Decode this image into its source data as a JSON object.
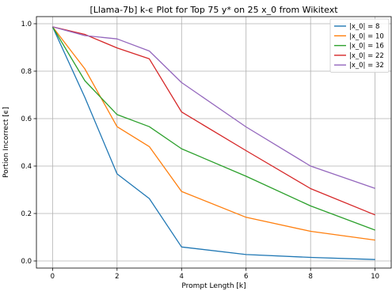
{
  "chart_data": {
    "type": "line",
    "title": "[Llama-7b] k-ϵ Plot for Top 75 y* on 25 x_0 from Wikitext",
    "xlabel": "Prompt Length [k]",
    "ylabel": "Portion Incorrect [ϵ]",
    "xlim": [
      -0.5,
      10.5
    ],
    "ylim": [
      -0.03,
      1.03
    ],
    "x_ticks": [
      0,
      2,
      4,
      6,
      8,
      10
    ],
    "x_tick_labels": [
      "0",
      "2",
      "4",
      "6",
      "8",
      "10"
    ],
    "y_ticks": [
      0.0,
      0.2,
      0.4,
      0.6,
      0.8,
      1.0
    ],
    "y_tick_labels": [
      "0.0",
      "0.2",
      "0.4",
      "0.6",
      "0.8",
      "1.0"
    ],
    "grid": true,
    "legend_position": "top-right",
    "x": [
      0,
      1,
      2,
      3,
      4,
      6,
      8,
      10
    ],
    "series": [
      {
        "name": "|x_0| = 8",
        "color": "#1f77b4",
        "values": [
          0.987,
          0.69,
          0.367,
          0.263,
          0.059,
          0.027,
          0.015,
          0.006
        ]
      },
      {
        "name": "|x_0| = 10",
        "color": "#ff7f0e",
        "values": [
          0.987,
          0.81,
          0.566,
          0.482,
          0.293,
          0.184,
          0.125,
          0.088
        ]
      },
      {
        "name": "|x_0| = 16",
        "color": "#2ca02c",
        "values": [
          0.987,
          0.76,
          0.617,
          0.566,
          0.473,
          0.357,
          0.232,
          0.13
        ]
      },
      {
        "name": "|x_0| = 22",
        "color": "#d62728",
        "values": [
          0.987,
          0.955,
          0.898,
          0.852,
          0.628,
          0.465,
          0.305,
          0.194
        ]
      },
      {
        "name": "|x_0| = 32",
        "color": "#9467bd",
        "values": [
          0.987,
          0.95,
          0.936,
          0.885,
          0.752,
          0.565,
          0.4,
          0.306
        ]
      }
    ]
  }
}
